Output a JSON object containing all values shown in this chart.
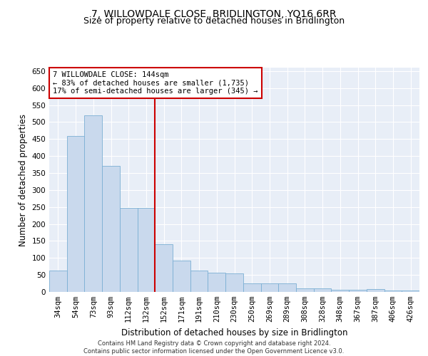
{
  "title": "7, WILLOWDALE CLOSE, BRIDLINGTON, YO16 6RR",
  "subtitle": "Size of property relative to detached houses in Bridlington",
  "xlabel": "Distribution of detached houses by size in Bridlington",
  "ylabel": "Number of detached properties",
  "categories": [
    "34sqm",
    "54sqm",
    "73sqm",
    "93sqm",
    "112sqm",
    "132sqm",
    "152sqm",
    "171sqm",
    "191sqm",
    "210sqm",
    "230sqm",
    "250sqm",
    "269sqm",
    "289sqm",
    "308sqm",
    "328sqm",
    "348sqm",
    "367sqm",
    "387sqm",
    "406sqm",
    "426sqm"
  ],
  "values": [
    62,
    458,
    520,
    370,
    248,
    248,
    140,
    93,
    62,
    57,
    55,
    26,
    26,
    26,
    11,
    11,
    6,
    6,
    8,
    4,
    4
  ],
  "bar_color": "#c9d9ed",
  "bar_edge_color": "#7bafd4",
  "vline_color": "#cc0000",
  "annotation_box_text": "7 WILLOWDALE CLOSE: 144sqm\n← 83% of detached houses are smaller (1,735)\n17% of semi-detached houses are larger (345) →",
  "annotation_box_color": "#cc0000",
  "annotation_box_fill": "#ffffff",
  "footer_text": "Contains HM Land Registry data © Crown copyright and database right 2024.\nContains public sector information licensed under the Open Government Licence v3.0.",
  "ylim": [
    0,
    660
  ],
  "yticks": [
    0,
    50,
    100,
    150,
    200,
    250,
    300,
    350,
    400,
    450,
    500,
    550,
    600,
    650
  ],
  "bg_color": "#e8eef7",
  "grid_color": "#ffffff",
  "title_fontsize": 10,
  "subtitle_fontsize": 9,
  "tick_fontsize": 7.5,
  "label_fontsize": 8.5,
  "footer_fontsize": 6,
  "annot_fontsize": 7.5
}
